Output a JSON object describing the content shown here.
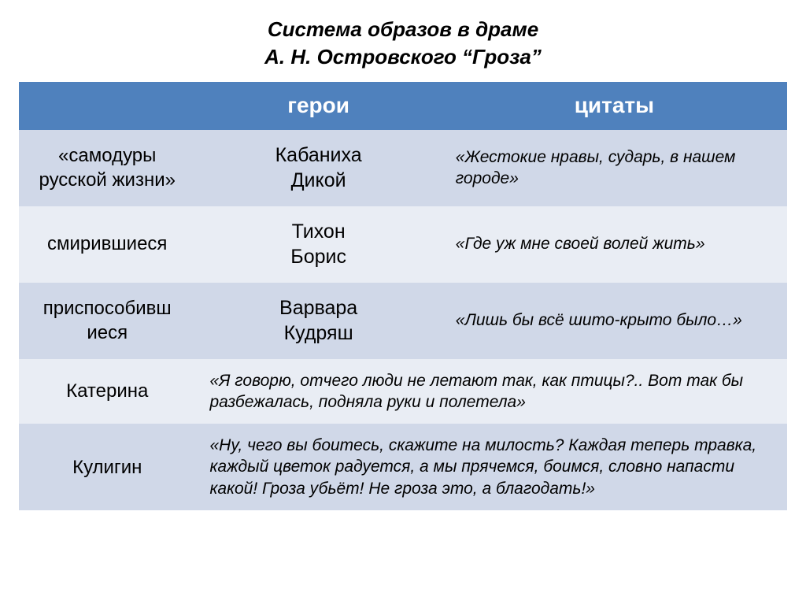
{
  "title_line1": "Система образов в драме",
  "title_line2": "А. Н. Островского “Гроза”",
  "header": {
    "col1": "",
    "col2": "герои",
    "col3": "цитаты"
  },
  "rows": [
    {
      "category": "«самодуры русской жизни»",
      "heroes": "Кабаниха\nДикой",
      "quote": "«Жестокие нравы, сударь, в нашем городе»"
    },
    {
      "category": "смирившиеся",
      "heroes": "Тихон\nБорис",
      "quote": "«Где уж мне своей волей жить»"
    },
    {
      "category": "приспособивш иеся",
      "heroes": "Варвара\nКудряш",
      "quote": "«Лишь бы всё шито-крыто было…»"
    }
  ],
  "merged_rows": [
    {
      "category": "Катерина",
      "quote": "«Я говорю, отчего люди не летают так, как птицы?.. Вот так бы разбежалась, подняла руки и полетела»"
    },
    {
      "category": "Кулигин",
      "quote": "«Ну, чего вы боитесь, скажите на милость? Каждая теперь травка, каждый цветок радуется, а мы прячемся, боимся, словно напасти какой! Гроза убьёт! Не гроза это, а благодать!»"
    }
  ],
  "colors": {
    "header_bg": "#4f81bd",
    "row_even": "#e9edf4",
    "row_odd": "#d0d8e8",
    "header_text": "#ffffff",
    "body_text": "#000000"
  },
  "fonts": {
    "title_size": 26,
    "header_size": 28,
    "category_size": 24,
    "hero_size": 25,
    "quote_size": 21
  }
}
